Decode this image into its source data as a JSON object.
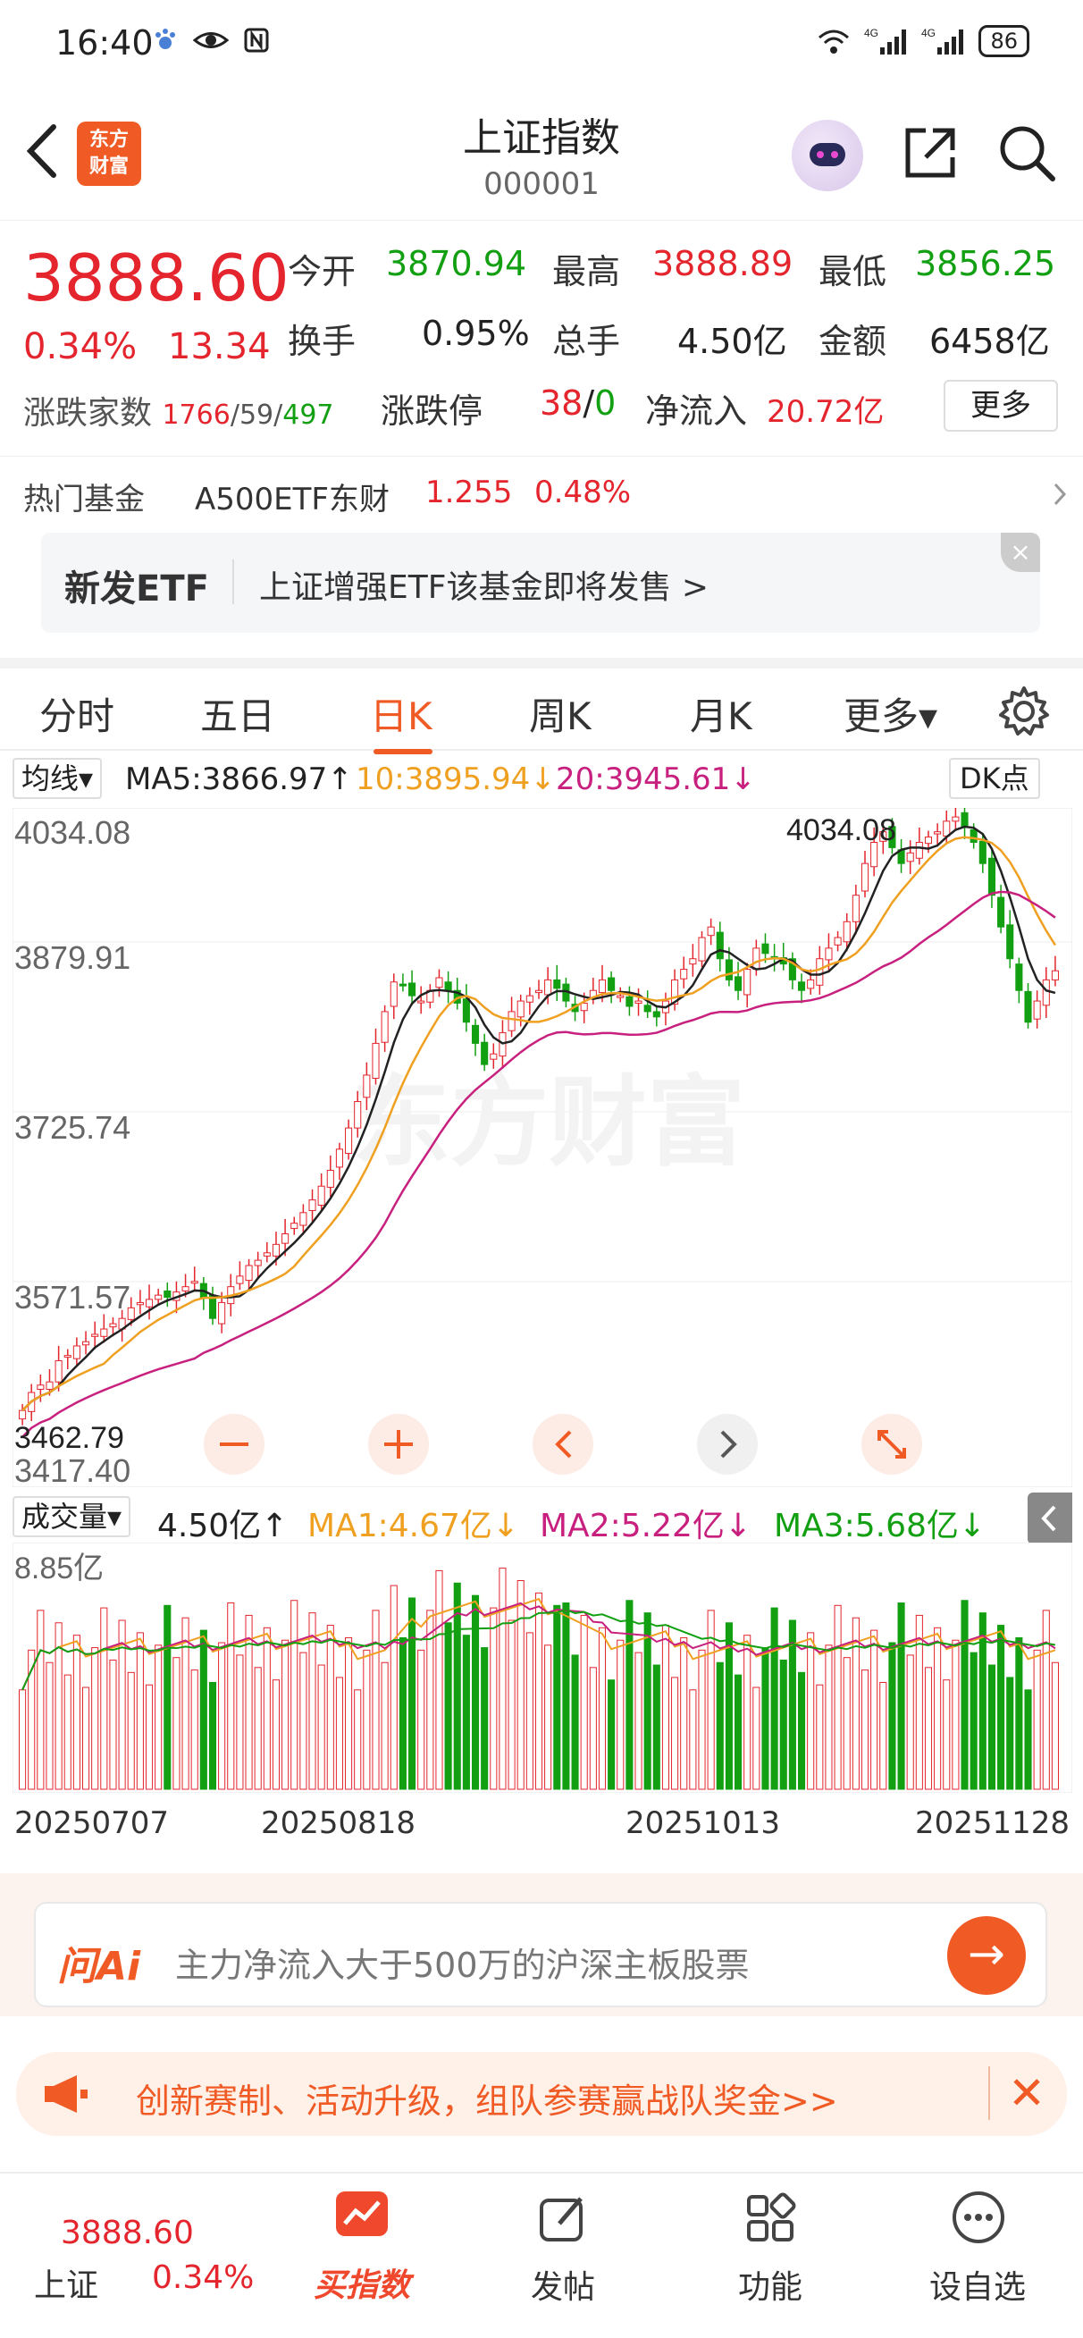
{
  "status_bar": {
    "time": "16:40",
    "battery": "86",
    "net1": "4G",
    "net2": "4G"
  },
  "header": {
    "back": "back",
    "logo_line1": "东方",
    "logo_line2": "财富",
    "title": "上证指数",
    "code": "000001"
  },
  "quote": {
    "price": "3888.60",
    "change_pct": "0.34%",
    "change_val": "13.34",
    "open_label": "今开",
    "open": "3870.94",
    "high_label": "最高",
    "high": "3888.89",
    "low_label": "最低",
    "low": "3856.25",
    "turnover_label": "换手",
    "turnover": "0.95%",
    "volume_label": "总手",
    "volume": "4.50亿",
    "amount_label": "金额",
    "amount": "6458亿",
    "breadth_label": "涨跌家数",
    "up": "1766",
    "flat": "59",
    "down": "497",
    "limit_label": "涨跌停",
    "limit_up": "38",
    "limit_down": "0",
    "inflow_label": "净流入",
    "inflow": "20.72亿",
    "more": "更多"
  },
  "hot_fund": {
    "label": "热门基金",
    "name": "A500ETF东财",
    "nav": "1.255",
    "pct": "0.48%"
  },
  "etf_banner": {
    "tag": "新发ETF",
    "text": "上证增强ETF该基金即将发售  >",
    "close": "×"
  },
  "tabs": [
    {
      "label": "分时"
    },
    {
      "label": "五日"
    },
    {
      "label": "日K"
    },
    {
      "label": "周K"
    },
    {
      "label": "月K"
    },
    {
      "label": "更多▾"
    }
  ],
  "ma": {
    "type": "均线▾",
    "ma5": "MA5:3866.97↑",
    "ma10": "10:3895.94↓",
    "ma20": "20:3945.61↓",
    "dk": "DK点"
  },
  "kline_labels": {
    "y1": "4034.08",
    "y2": "3879.91",
    "y3": "3725.74",
    "y4": "3571.57",
    "y5": "3417.40",
    "high_mark": "4034.08",
    "low_mark": "3462.79",
    "watermark": "东方财富"
  },
  "vol": {
    "type": "成交量▾",
    "current": "4.50亿↑",
    "ma1": "MA1:4.67亿↓",
    "ma2": "MA2:5.22亿↓",
    "ma3": "MA3:5.68亿↓",
    "max_label": "8.85亿"
  },
  "dates": [
    "20250707",
    "20250818",
    "20251013",
    "20251128"
  ],
  "ai": {
    "logo": "问Ai",
    "placeholder": "主力净流入大于500万的沪深主板股票",
    "go": "→"
  },
  "promo": {
    "text": "创新赛制、活动升级，组队参赛赢战队奖金>>",
    "close": "✕"
  },
  "bottom_nav": {
    "index_price": "3888.60",
    "index_name": "上证",
    "index_pct": "0.34%",
    "buy": "买指数",
    "post": "发帖",
    "func": "功能",
    "watch": "设自选"
  },
  "colors": {
    "up": "#e4252d",
    "down": "#12a012",
    "accent": "#f05a24",
    "ma5": "#222222",
    "ma10": "#f0a020",
    "ma20": "#c8207e"
  },
  "chart_data": {
    "type": "candlestick",
    "ylim": [
      3417.4,
      4034.08
    ],
    "closes": [
      3473,
      3490,
      3497,
      3500,
      3520,
      3525,
      3534,
      3538,
      3545,
      3550,
      3555,
      3560,
      3570,
      3575,
      3578,
      3582,
      3580,
      3585,
      3590,
      3595,
      3580,
      3560,
      3575,
      3590,
      3600,
      3610,
      3615,
      3622,
      3630,
      3640,
      3650,
      3660,
      3672,
      3685,
      3700,
      3720,
      3740,
      3765,
      3790,
      3820,
      3850,
      3878,
      3875,
      3865,
      3860,
      3870,
      3882,
      3870,
      3858,
      3840,
      3820,
      3800,
      3810,
      3830,
      3850,
      3860,
      3865,
      3870,
      3880,
      3872,
      3860,
      3850,
      3858,
      3870,
      3880,
      3870,
      3865,
      3855,
      3860,
      3850,
      3845,
      3860,
      3880,
      3890,
      3900,
      3920,
      3930,
      3900,
      3880,
      3870,
      3890,
      3910,
      3905,
      3900,
      3895,
      3880,
      3870,
      3880,
      3900,
      3910,
      3920,
      3935,
      3960,
      3990,
      4010,
      4020,
      4005,
      3990,
      4000,
      4010,
      4015,
      4020,
      4030,
      4034,
      4025,
      4010,
      3990,
      3960,
      3930,
      3900,
      3870,
      3840,
      3860,
      3880,
      3888.6
    ],
    "volume_ylim": [
      0,
      8.85
    ]
  }
}
